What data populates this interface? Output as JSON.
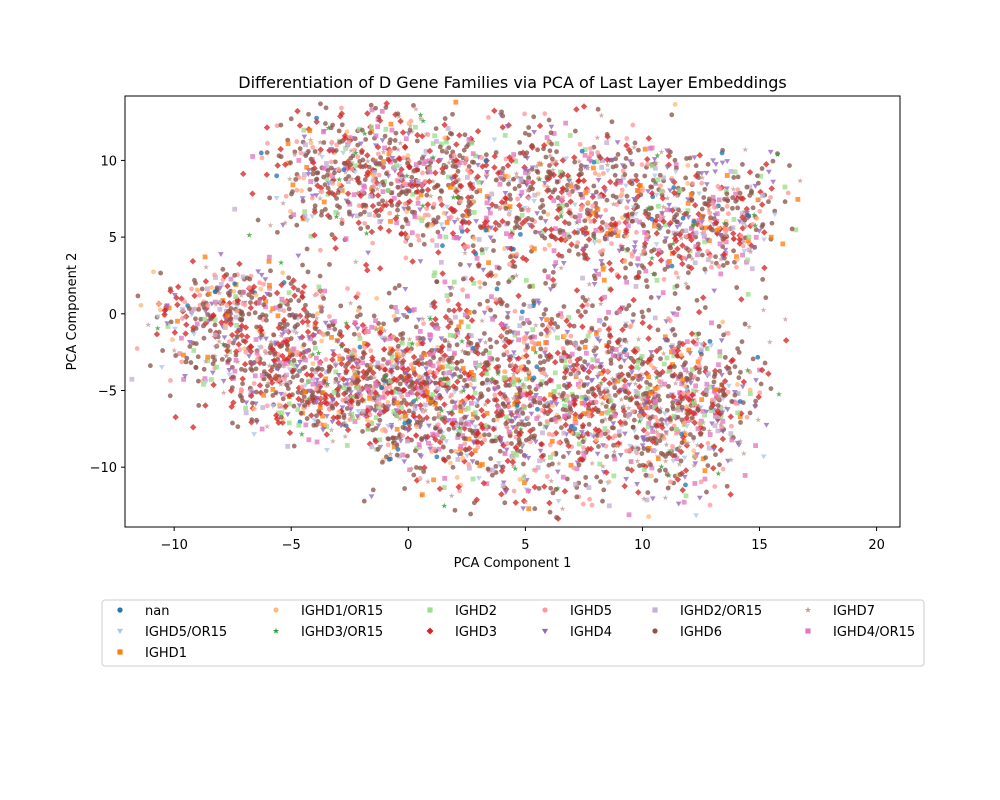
{
  "chart_data": {
    "type": "scatter",
    "title": "Differentiation of D Gene Families via PCA of Last Layer Embeddings",
    "xlabel": "PCA Component 1",
    "ylabel": "PCA Component 2",
    "xlim": [
      -12.1,
      21.0
    ],
    "ylim": [
      -13.9,
      14.2
    ],
    "xticks": [
      -10,
      -5,
      0,
      5,
      10,
      15,
      20
    ],
    "yticks": [
      -10,
      -5,
      0,
      5,
      10
    ],
    "xtick_labels": [
      "−10",
      "−5",
      "0",
      "5",
      "10",
      "15",
      "20"
    ],
    "ytick_labels": [
      "−10",
      "−5",
      "0",
      "5",
      "10"
    ],
    "grid": false,
    "legend_position": "bottom",
    "clusters": [
      {
        "name": "upper",
        "from": [
          -5.0,
          10.0
        ],
        "to": [
          15.0,
          5.5
        ],
        "spread": 2.3
      },
      {
        "name": "left-lower",
        "from": [
          -9.0,
          1.5
        ],
        "to": [
          -2.0,
          -6.5
        ],
        "spread": 1.8
      },
      {
        "name": "lower-main",
        "from": [
          -2.0,
          -5.0
        ],
        "to": [
          14.0,
          -6.0
        ],
        "spread": 3.0
      }
    ],
    "series": [
      {
        "name": "nan",
        "color": "#1f77b4",
        "marker": "circle"
      },
      {
        "name": "IGHD5/OR15",
        "color": "#aec7e8",
        "marker": "triangle-down"
      },
      {
        "name": "IGHD1",
        "color": "#ff7f0e",
        "marker": "square"
      },
      {
        "name": "IGHD1/OR15",
        "color": "#ffbb78",
        "marker": "circle"
      },
      {
        "name": "IGHD3/OR15",
        "color": "#2ca02c",
        "marker": "star"
      },
      {
        "name": "IGHD2",
        "color": "#98df8a",
        "marker": "square"
      },
      {
        "name": "IGHD3",
        "color": "#d62728",
        "marker": "diamond"
      },
      {
        "name": "IGHD5",
        "color": "#ff9896",
        "marker": "circle"
      },
      {
        "name": "IGHD4",
        "color": "#9467bd",
        "marker": "triangle-down"
      },
      {
        "name": "IGHD2/OR15",
        "color": "#c5b0d5",
        "marker": "square"
      },
      {
        "name": "IGHD6",
        "color": "#8c564b",
        "marker": "circle"
      },
      {
        "name": "IGHD7",
        "color": "#c49c94",
        "marker": "star"
      },
      {
        "name": "IGHD4/OR15",
        "color": "#e377c2",
        "marker": "square"
      }
    ]
  }
}
